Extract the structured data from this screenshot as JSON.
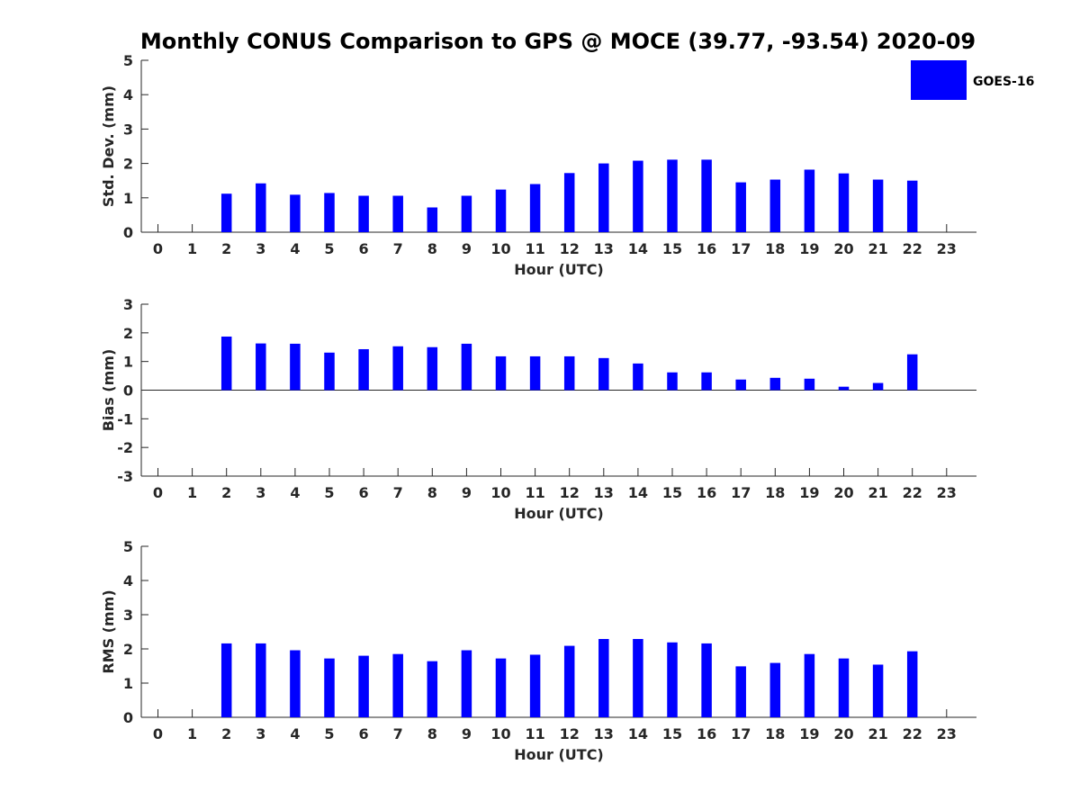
{
  "chart_data": {
    "title": "Monthly CONUS Comparison to GPS @ MOCE (39.77, -93.54) 2020-09",
    "legend": {
      "entries": [
        "GOES-16"
      ],
      "placement": "top-right",
      "color": "#0000ff"
    },
    "bar_color": "#0000ff",
    "panels": [
      {
        "type": "bar",
        "ylabel": "Std. Dev. (mm)",
        "xlabel": "Hour (UTC)",
        "ylim": [
          0,
          5
        ],
        "yticks": [
          0,
          1,
          2,
          3,
          4,
          5
        ],
        "zero_line": false,
        "categories": [
          "0",
          "1",
          "2",
          "3",
          "4",
          "5",
          "6",
          "7",
          "8",
          "9",
          "10",
          "11",
          "12",
          "13",
          "14",
          "15",
          "16",
          "17",
          "18",
          "19",
          "20",
          "21",
          "22",
          "23"
        ],
        "series": [
          {
            "name": "GOES-16",
            "values": [
              null,
              null,
              1.12,
              1.42,
              1.09,
              1.14,
              1.06,
              1.06,
              0.72,
              1.06,
              1.24,
              1.4,
              1.72,
              2.0,
              2.08,
              2.11,
              2.11,
              1.45,
              1.53,
              1.82,
              1.71,
              1.53,
              1.5,
              null
            ]
          }
        ]
      },
      {
        "type": "bar",
        "ylabel": "Bias (mm)",
        "xlabel": "Hour (UTC)",
        "ylim": [
          -3,
          3
        ],
        "yticks": [
          -3,
          -2,
          -1,
          0,
          1,
          2,
          3
        ],
        "zero_line": true,
        "categories": [
          "0",
          "1",
          "2",
          "3",
          "4",
          "5",
          "6",
          "7",
          "8",
          "9",
          "10",
          "11",
          "12",
          "13",
          "14",
          "15",
          "16",
          "17",
          "18",
          "19",
          "20",
          "21",
          "22",
          "23"
        ],
        "series": [
          {
            "name": "GOES-16",
            "values": [
              null,
              null,
              1.87,
              1.63,
              1.62,
              1.31,
              1.43,
              1.53,
              1.5,
              1.62,
              1.18,
              1.18,
              1.18,
              1.12,
              0.93,
              0.62,
              0.62,
              0.37,
              0.43,
              0.4,
              0.12,
              0.25,
              1.25,
              null
            ]
          }
        ]
      },
      {
        "type": "bar",
        "ylabel": "RMS (mm)",
        "xlabel": "Hour (UTC)",
        "ylim": [
          0,
          5
        ],
        "yticks": [
          0,
          1,
          2,
          3,
          4,
          5
        ],
        "zero_line": false,
        "categories": [
          "0",
          "1",
          "2",
          "3",
          "4",
          "5",
          "6",
          "7",
          "8",
          "9",
          "10",
          "11",
          "12",
          "13",
          "14",
          "15",
          "16",
          "17",
          "18",
          "19",
          "20",
          "21",
          "22",
          "23"
        ],
        "series": [
          {
            "name": "GOES-16",
            "values": [
              null,
              null,
              2.16,
              2.16,
              1.96,
              1.72,
              1.8,
              1.85,
              1.64,
              1.96,
              1.72,
              1.83,
              2.09,
              2.29,
              2.29,
              2.19,
              2.16,
              1.49,
              1.59,
              1.85,
              1.72,
              1.54,
              1.93,
              null
            ]
          }
        ]
      }
    ]
  }
}
